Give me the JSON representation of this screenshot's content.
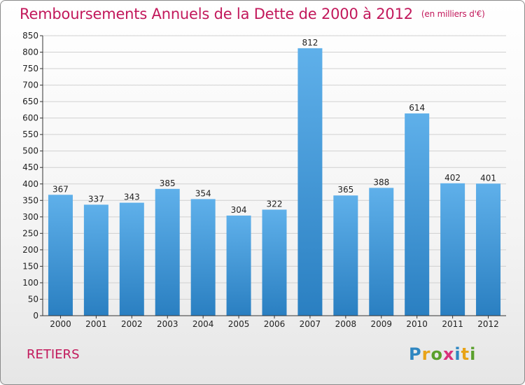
{
  "header": {
    "title": "Remboursements Annuels de la Dette de 2000 à 2012",
    "unit": "(en milliers d'€)"
  },
  "footer": {
    "commune": "RETIERS",
    "logo_letters": [
      "P",
      "r",
      "o",
      "x",
      "i",
      "t",
      "i"
    ],
    "logo_colors": [
      "#2e86c1",
      "#e8a317",
      "#5aa02c",
      "#d9307a",
      "#2e86c1",
      "#e8a317",
      "#5aa02c"
    ]
  },
  "colors": {
    "bar_top": "#5fb0ea",
    "bar_bottom": "#2a7fc1",
    "grid": "#d0d0d0",
    "axis": "#333333",
    "text": "#222222"
  },
  "chart_data": {
    "type": "bar",
    "title": "Remboursements Annuels de la Dette de 2000 à 2012",
    "categories": [
      "2000",
      "2001",
      "2002",
      "2003",
      "2004",
      "2005",
      "2006",
      "2007",
      "2008",
      "2009",
      "2010",
      "2011",
      "2012"
    ],
    "values": [
      367,
      337,
      343,
      385,
      354,
      304,
      322,
      812,
      365,
      388,
      614,
      402,
      401
    ],
    "ylim": [
      0,
      850
    ],
    "ytick_step": 50,
    "grid": true,
    "legend": "none"
  }
}
